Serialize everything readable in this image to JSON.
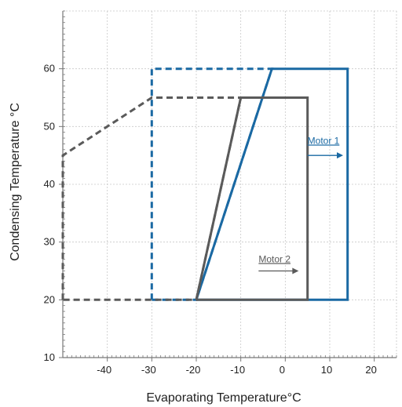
{
  "chart_data": {
    "type": "line",
    "title": "",
    "xlabel": "Evaporating Temperature°C",
    "ylabel": "Condensing Temperature °C",
    "xlim": [
      -50,
      25
    ],
    "ylim": [
      10,
      70
    ],
    "x_ticks": [
      -40,
      -30,
      -20,
      -10,
      0,
      10,
      20
    ],
    "y_ticks": [
      10,
      20,
      30,
      40,
      50,
      60
    ],
    "grid": true,
    "legend": "none",
    "colors": {
      "blue": "#1a69a3",
      "gray": "#5a5a5a",
      "grid": "#c8c8c8",
      "axis": "#777777",
      "text": "#222222"
    },
    "series": [
      {
        "color": "#1a69a3",
        "dash": "solid",
        "closed": true,
        "x": [
          -20,
          14,
          14,
          -3,
          -20
        ],
        "y": [
          20,
          20,
          60,
          60,
          20
        ]
      },
      {
        "color": "#1a69a3",
        "dash": "dashed",
        "closed": true,
        "x": [
          -30,
          -30,
          -3,
          -20,
          -30
        ],
        "y": [
          20,
          60,
          60,
          20,
          20
        ]
      },
      {
        "color": "#5a5a5a",
        "dash": "solid",
        "closed": true,
        "x": [
          -20,
          5,
          5,
          -10,
          -20
        ],
        "y": [
          20,
          20,
          55,
          55,
          20
        ]
      },
      {
        "color": "#5a5a5a",
        "dash": "dashed",
        "closed": true,
        "x": [
          -50,
          -50,
          -30,
          -10,
          -20,
          -50
        ],
        "y": [
          20,
          45,
          55,
          55,
          20,
          20
        ]
      }
    ],
    "annotations": [
      {
        "text": "Motor 1",
        "color": "#1a69a3",
        "x": 5,
        "y": 47,
        "arrow_to": [
          13,
          45
        ]
      },
      {
        "text": "Motor 2",
        "color": "#5a5a5a",
        "x": -6,
        "y": 26.5,
        "arrow_to": [
          3,
          25
        ]
      }
    ]
  }
}
